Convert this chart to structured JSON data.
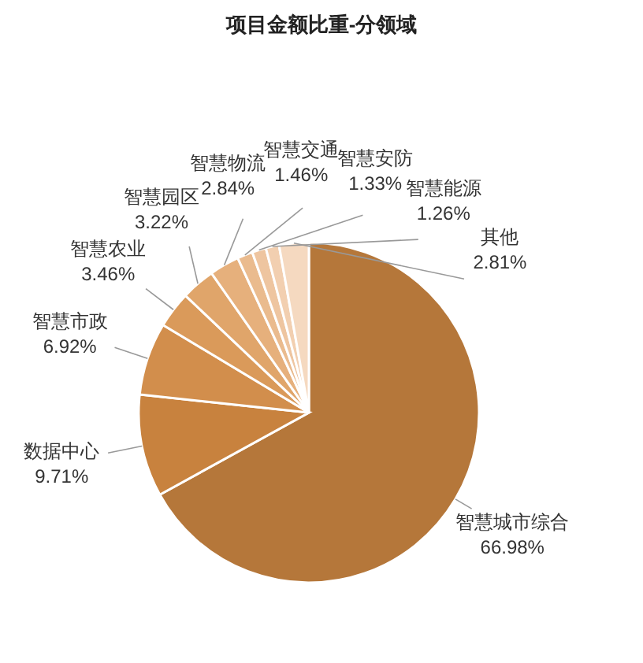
{
  "chart_data": {
    "type": "pie",
    "title": "项目金额比重-分领域",
    "categories": [
      "智慧城市综合",
      "数据中心",
      "智慧市政",
      "智慧农业",
      "智慧园区",
      "智慧物流",
      "智慧交通",
      "智慧安防",
      "智慧能源",
      "其他"
    ],
    "values": [
      66.98,
      9.71,
      6.92,
      3.46,
      3.22,
      2.84,
      1.46,
      1.33,
      1.26,
      2.81
    ],
    "value_labels": [
      "66.98%",
      "9.71%",
      "6.92%",
      "3.46%",
      "3.22%",
      "2.84%",
      "1.46%",
      "1.33%",
      "1.26%",
      "2.81%"
    ],
    "colors": [
      "#b5773a",
      "#c8823e",
      "#d28e4c",
      "#da9a5a",
      "#e0a56a",
      "#e6b07c",
      "#eabb8e",
      "#eec5a0",
      "#f2cfb0",
      "#f5d9c0"
    ]
  }
}
